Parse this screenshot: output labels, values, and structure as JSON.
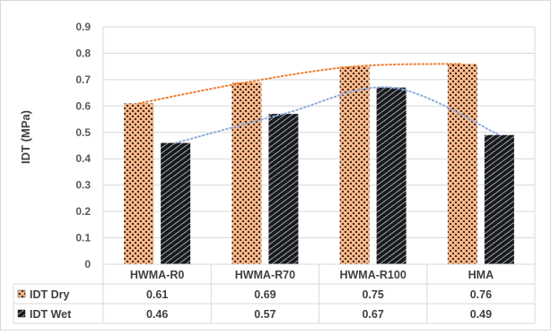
{
  "chart_data": {
    "type": "bar",
    "ylabel": "IDT (MPa)",
    "xlabel": "",
    "ylim": [
      0,
      0.9
    ],
    "yticks": [
      "0",
      "0.1",
      "0.2",
      "0.3",
      "0.4",
      "0.5",
      "0.6",
      "0.7",
      "0.8",
      "0.9"
    ],
    "categories": [
      "HWMA-R0",
      "HWMA-R70",
      "HWMA-R100",
      "HMA"
    ],
    "series": [
      {
        "name": "IDT Dry",
        "values": [
          0.61,
          0.69,
          0.75,
          0.76
        ],
        "labels": [
          "0.61",
          "0.69",
          "0.75",
          "0.76"
        ],
        "color": "#f4b183",
        "trend_color": "#ed7d31"
      },
      {
        "name": "IDT Wet",
        "values": [
          0.46,
          0.57,
          0.67,
          0.49
        ],
        "labels": [
          "0.46",
          "0.57",
          "0.67",
          "0.49"
        ],
        "color": "#1a1a1a",
        "trend_color": "#8faadc"
      }
    ],
    "grid": true,
    "legend": "data-table-left",
    "trendlines": "polynomial (dotted)"
  }
}
